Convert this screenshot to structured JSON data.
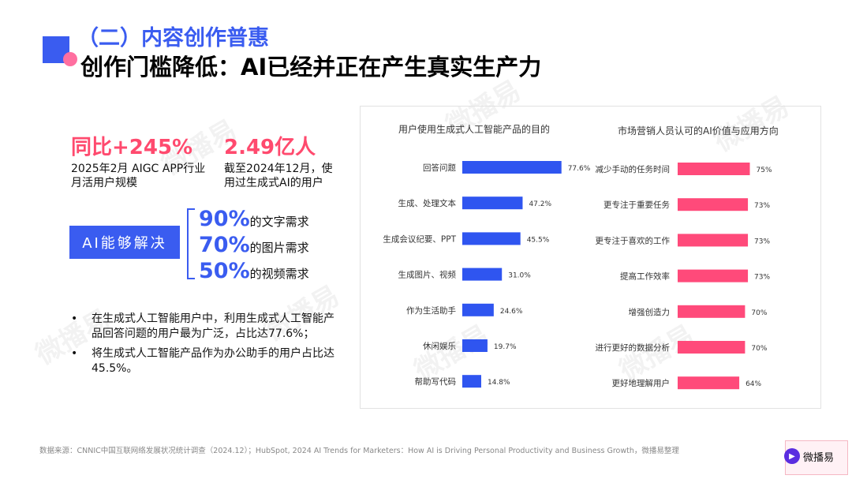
{
  "header": {
    "section_title": "（二）内容创作普惠",
    "main_title": "创作门槛降低：AI已经并正在产生真实生产力"
  },
  "watermark": "微播易",
  "stats": [
    {
      "value": "同比+245%",
      "desc_line1": "2025年2月 AIGC APP行业",
      "desc_line2": "月活用户规模"
    },
    {
      "value": "2.49亿人",
      "desc_line1": "截至2024年12月，使",
      "desc_line2": "用过生成式AI的用户"
    }
  ],
  "ai_box_label": "AI能够解决",
  "needs": [
    {
      "pct": "90%",
      "text": "的文字需求"
    },
    {
      "pct": "70%",
      "text": "的图片需求"
    },
    {
      "pct": "50%",
      "text": "的视频需求"
    }
  ],
  "bullets": [
    "在生成式人工智能用户中，利用生成式人工智能产品回答问题的用户最为广泛，占比达77.6%；",
    "将生成式人工智能产品作为办公助手的用户占比达45.5%。"
  ],
  "bullet_symbol": "•",
  "chart_data": [
    {
      "type": "bar",
      "orientation": "horizontal",
      "title": "用户使用生成式人工智能产品的目的",
      "categories": [
        "回答问题",
        "生成、处理文本",
        "生成会议纪要、PPT",
        "生成图片、视频",
        "作为生活助手",
        "休闲娱乐",
        "帮助写代码"
      ],
      "values": [
        77.6,
        47.2,
        45.5,
        31.0,
        24.6,
        19.7,
        14.8
      ],
      "labels": [
        "77.6%",
        "47.2%",
        "45.5%",
        "31.0%",
        "24.6%",
        "19.7%",
        "14.8%"
      ],
      "xlim": [
        0,
        100
      ],
      "color": "#2f55f0"
    },
    {
      "type": "bar",
      "orientation": "horizontal",
      "title": "市场营销人员认可的AI价值与应用方向",
      "categories": [
        "减少手动的任务时间",
        "更专注于重要任务",
        "更专注于喜欢的工作",
        "提高工作效率",
        "增强创造力",
        "进行更好的数据分析",
        "更好地理解用户"
      ],
      "values": [
        75,
        73,
        73,
        73,
        70,
        70,
        64
      ],
      "labels": [
        "75%",
        "73%",
        "73%",
        "73%",
        "70%",
        "70%",
        "64%"
      ],
      "xlim": [
        0,
        100
      ],
      "color": "#ff4a7a"
    }
  ],
  "footer": {
    "source": "数据来源：CNNIC中国互联网络发展状况统计调查（2024.12）；HubSpot, 2024 AI Trends for Marketers：How AI is Driving Personal Productivity and Business Growth，微播易整理",
    "logo_text": "微播易",
    "logo_icon": "play-icon"
  }
}
